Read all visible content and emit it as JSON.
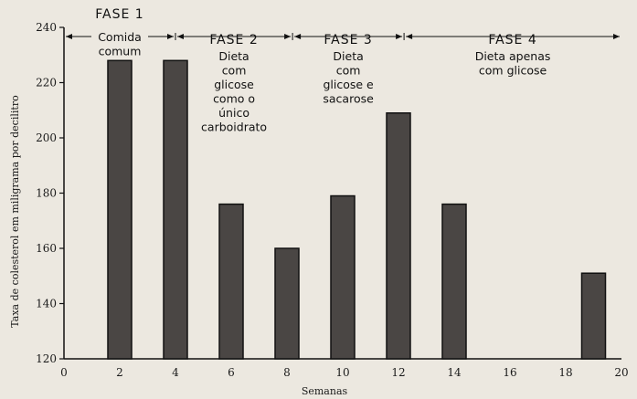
{
  "chart_data": {
    "type": "bar",
    "xlabel": "Semanas",
    "ylabel": "Taxa de colesterol em miligrama por decilitro",
    "xlim": [
      0,
      20
    ],
    "ylim": [
      120,
      240
    ],
    "x_ticks": [
      "0",
      "2",
      "4",
      "6",
      "8",
      "10",
      "12",
      "14",
      "16",
      "18",
      "20"
    ],
    "y_ticks": [
      "120",
      "140",
      "160",
      "180",
      "200",
      "220",
      "240"
    ],
    "bars": [
      {
        "x": 2,
        "value": 228
      },
      {
        "x": 4,
        "value": 228
      },
      {
        "x": 6,
        "value": 176
      },
      {
        "x": 8,
        "value": 160
      },
      {
        "x": 10,
        "value": 179
      },
      {
        "x": 12,
        "value": 209
      },
      {
        "x": 14,
        "value": 176
      },
      {
        "x": 19,
        "value": 151
      }
    ],
    "bar_color": "#4a4644",
    "phases": [
      {
        "title": "FASE 1",
        "desc": [
          "Comida",
          "comum"
        ],
        "start": 0,
        "end": 4
      },
      {
        "title": "FASE 2",
        "desc": [
          "Dieta",
          "com",
          "glicose",
          "como o",
          "único",
          "carboidrato"
        ],
        "start": 4,
        "end": 8.2
      },
      {
        "title": "FASE 3",
        "desc": [
          "Dieta",
          "com",
          "glicose e",
          "sacarose"
        ],
        "start": 8.2,
        "end": 12.2
      },
      {
        "title": "FASE 4",
        "desc": [
          "Dieta apenas",
          "com glicose"
        ],
        "start": 12.2,
        "end": 20
      }
    ]
  }
}
